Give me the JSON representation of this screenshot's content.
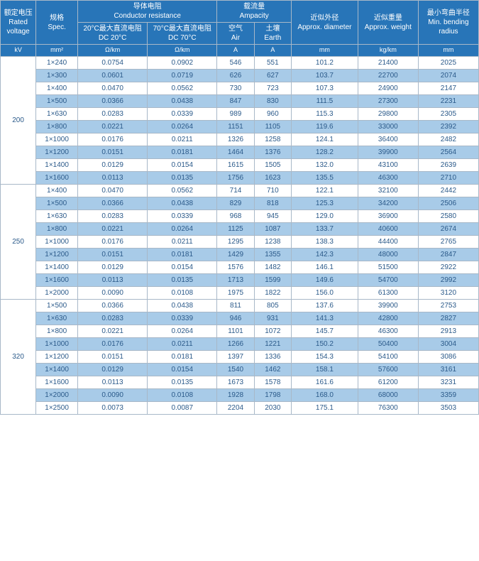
{
  "headers": {
    "rated_voltage_cn": "额定电压",
    "rated_voltage_en": "Rated voltage",
    "spec_cn": "规格",
    "spec_en": "Spec.",
    "cond_res_cn": "导体电阻",
    "cond_res_en": "Conductor resistance",
    "dc20_cn": "20°C最大直流电阻",
    "dc20_en": "DC 20°C",
    "dc70_cn": "70°C最大直流电阻",
    "dc70_en": "DC 70°C",
    "ampacity_cn": "载流量",
    "ampacity_en": "Ampacity",
    "air_cn": "空气",
    "air_en": "Air",
    "earth_cn": "土壤",
    "earth_en": "Earth",
    "diameter_cn": "近似外径",
    "diameter_en": "Approx. diameter",
    "weight_cn": "近似重量",
    "weight_en": "Approx. weight",
    "radius_cn": "最小弯曲半径",
    "radius_en": "Min. bending radius"
  },
  "units": {
    "kv": "kV",
    "spec": "mm²",
    "dc20": "Ω/km",
    "dc70": "Ω/km",
    "air": "A",
    "earth": "A",
    "diameter": "mm",
    "weight": "kg/km",
    "radius": "mm"
  },
  "groups": [
    {
      "voltage": "200",
      "rows": [
        {
          "spec": "1×240",
          "dc20": "0.0754",
          "dc70": "0.0902",
          "air": "546",
          "earth": "551",
          "dia": "101.2",
          "wt": "21400",
          "rad": "2025"
        },
        {
          "spec": "1×300",
          "dc20": "0.0601",
          "dc70": "0.0719",
          "air": "626",
          "earth": "627",
          "dia": "103.7",
          "wt": "22700",
          "rad": "2074"
        },
        {
          "spec": "1×400",
          "dc20": "0.0470",
          "dc70": "0.0562",
          "air": "730",
          "earth": "723",
          "dia": "107.3",
          "wt": "24900",
          "rad": "2147"
        },
        {
          "spec": "1×500",
          "dc20": "0.0366",
          "dc70": "0.0438",
          "air": "847",
          "earth": "830",
          "dia": "111.5",
          "wt": "27300",
          "rad": "2231"
        },
        {
          "spec": "1×630",
          "dc20": "0.0283",
          "dc70": "0.0339",
          "air": "989",
          "earth": "960",
          "dia": "115.3",
          "wt": "29800",
          "rad": "2305"
        },
        {
          "spec": "1×800",
          "dc20": "0.0221",
          "dc70": "0.0264",
          "air": "1151",
          "earth": "1105",
          "dia": "119.6",
          "wt": "33000",
          "rad": "2392"
        },
        {
          "spec": "1×1000",
          "dc20": "0.0176",
          "dc70": "0.0211",
          "air": "1326",
          "earth": "1258",
          "dia": "124.1",
          "wt": "36400",
          "rad": "2482"
        },
        {
          "spec": "1×1200",
          "dc20": "0.0151",
          "dc70": "0.0181",
          "air": "1464",
          "earth": "1376",
          "dia": "128.2",
          "wt": "39900",
          "rad": "2564"
        },
        {
          "spec": "1×1400",
          "dc20": "0.0129",
          "dc70": "0.0154",
          "air": "1615",
          "earth": "1505",
          "dia": "132.0",
          "wt": "43100",
          "rad": "2639"
        },
        {
          "spec": "1×1600",
          "dc20": "0.0113",
          "dc70": "0.0135",
          "air": "1756",
          "earth": "1623",
          "dia": "135.5",
          "wt": "46300",
          "rad": "2710"
        }
      ]
    },
    {
      "voltage": "250",
      "rows": [
        {
          "spec": "1×400",
          "dc20": "0.0470",
          "dc70": "0.0562",
          "air": "714",
          "earth": "710",
          "dia": "122.1",
          "wt": "32100",
          "rad": "2442"
        },
        {
          "spec": "1×500",
          "dc20": "0.0366",
          "dc70": "0.0438",
          "air": "829",
          "earth": "818",
          "dia": "125.3",
          "wt": "34200",
          "rad": "2506"
        },
        {
          "spec": "1×630",
          "dc20": "0.0283",
          "dc70": "0.0339",
          "air": "968",
          "earth": "945",
          "dia": "129.0",
          "wt": "36900",
          "rad": "2580"
        },
        {
          "spec": "1×800",
          "dc20": "0.0221",
          "dc70": "0.0264",
          "air": "1125",
          "earth": "1087",
          "dia": "133.7",
          "wt": "40600",
          "rad": "2674"
        },
        {
          "spec": "1×1000",
          "dc20": "0.0176",
          "dc70": "0.0211",
          "air": "1295",
          "earth": "1238",
          "dia": "138.3",
          "wt": "44400",
          "rad": "2765"
        },
        {
          "spec": "1×1200",
          "dc20": "0.0151",
          "dc70": "0.0181",
          "air": "1429",
          "earth": "1355",
          "dia": "142.3",
          "wt": "48000",
          "rad": "2847"
        },
        {
          "spec": "1×1400",
          "dc20": "0.0129",
          "dc70": "0.0154",
          "air": "1576",
          "earth": "1482",
          "dia": "146.1",
          "wt": "51500",
          "rad": "2922"
        },
        {
          "spec": "1×1600",
          "dc20": "0.0113",
          "dc70": "0.0135",
          "air": "1713",
          "earth": "1599",
          "dia": "149.6",
          "wt": "54700",
          "rad": "2992"
        },
        {
          "spec": "1×2000",
          "dc20": "0.0090",
          "dc70": "0.0108",
          "air": "1975",
          "earth": "1822",
          "dia": "156.0",
          "wt": "61300",
          "rad": "3120"
        }
      ]
    },
    {
      "voltage": "320",
      "rows": [
        {
          "spec": "1×500",
          "dc20": "0.0366",
          "dc70": "0.0438",
          "air": "811",
          "earth": "805",
          "dia": "137.6",
          "wt": "39900",
          "rad": "2753"
        },
        {
          "spec": "1×630",
          "dc20": "0.0283",
          "dc70": "0.0339",
          "air": "946",
          "earth": "931",
          "dia": "141.3",
          "wt": "42800",
          "rad": "2827"
        },
        {
          "spec": "1×800",
          "dc20": "0.0221",
          "dc70": "0.0264",
          "air": "1101",
          "earth": "1072",
          "dia": "145.7",
          "wt": "46300",
          "rad": "2913"
        },
        {
          "spec": "1×1000",
          "dc20": "0.0176",
          "dc70": "0.0211",
          "air": "1266",
          "earth": "1221",
          "dia": "150.2",
          "wt": "50400",
          "rad": "3004"
        },
        {
          "spec": "1×1200",
          "dc20": "0.0151",
          "dc70": "0.0181",
          "air": "1397",
          "earth": "1336",
          "dia": "154.3",
          "wt": "54100",
          "rad": "3086"
        },
        {
          "spec": "1×1400",
          "dc20": "0.0129",
          "dc70": "0.0154",
          "air": "1540",
          "earth": "1462",
          "dia": "158.1",
          "wt": "57600",
          "rad": "3161"
        },
        {
          "spec": "1×1600",
          "dc20": "0.0113",
          "dc70": "0.0135",
          "air": "1673",
          "earth": "1578",
          "dia": "161.6",
          "wt": "61200",
          "rad": "3231"
        },
        {
          "spec": "1×2000",
          "dc20": "0.0090",
          "dc70": "0.0108",
          "air": "1928",
          "earth": "1798",
          "dia": "168.0",
          "wt": "68000",
          "rad": "3359"
        },
        {
          "spec": "1×2500",
          "dc20": "0.0073",
          "dc70": "0.0087",
          "air": "2204",
          "earth": "2030",
          "dia": "175.1",
          "wt": "76300",
          "rad": "3503"
        }
      ]
    }
  ],
  "style": {
    "header_bg": "#2875b8",
    "header_text": "#ffffff",
    "cell_text": "#2b5a8a",
    "stripe_bg": "#a8cbe8",
    "border": "#a8b8c8"
  }
}
